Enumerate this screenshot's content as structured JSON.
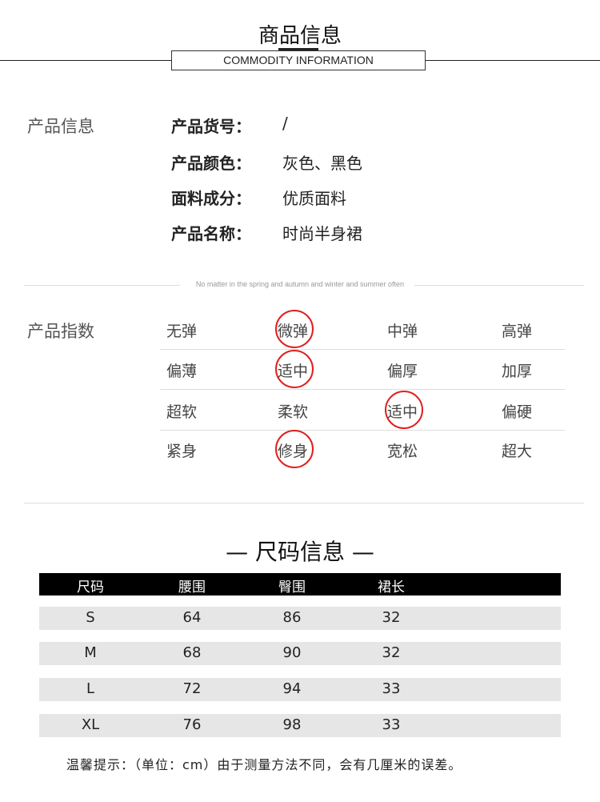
{
  "header": {
    "title": "商品信息",
    "subtitle": "COMMODITY INFORMATION"
  },
  "info": {
    "label": "产品信息",
    "rows": [
      {
        "key": "产品货号：",
        "value": "/"
      },
      {
        "key": "产品颜色：",
        "value": "灰色、黑色"
      },
      {
        "key": "面料成分：",
        "value": "优质面料"
      },
      {
        "key": "产品名称：",
        "value": "时尚半身裙"
      }
    ]
  },
  "divider_note": "No matter in the spring and autumn and winter and summer often",
  "index": {
    "label": "产品指数",
    "accent": "#e02020",
    "rows": [
      {
        "options": [
          "无弹",
          "微弹",
          "中弹",
          "高弹"
        ],
        "selected": 1
      },
      {
        "options": [
          "偏薄",
          "适中",
          "偏厚",
          "加厚"
        ],
        "selected": 1
      },
      {
        "options": [
          "超软",
          "柔软",
          "适中",
          "偏硬"
        ],
        "selected": 2
      },
      {
        "options": [
          "紧身",
          "修身",
          "宽松",
          "超大"
        ],
        "selected": 1
      }
    ]
  },
  "size": {
    "title": "— 尺码信息 —",
    "headers": [
      "尺码",
      "腰围",
      "臀围",
      "裙长"
    ],
    "rows": [
      [
        "S",
        "64",
        "86",
        "32"
      ],
      [
        "M",
        "68",
        "90",
        "32"
      ],
      [
        "L",
        "72",
        "94",
        "33"
      ],
      [
        "XL",
        "76",
        "98",
        "33"
      ]
    ]
  },
  "footer": "温馨提示：（单位：cm）由于测量方法不同，会有几厘米的误差。"
}
